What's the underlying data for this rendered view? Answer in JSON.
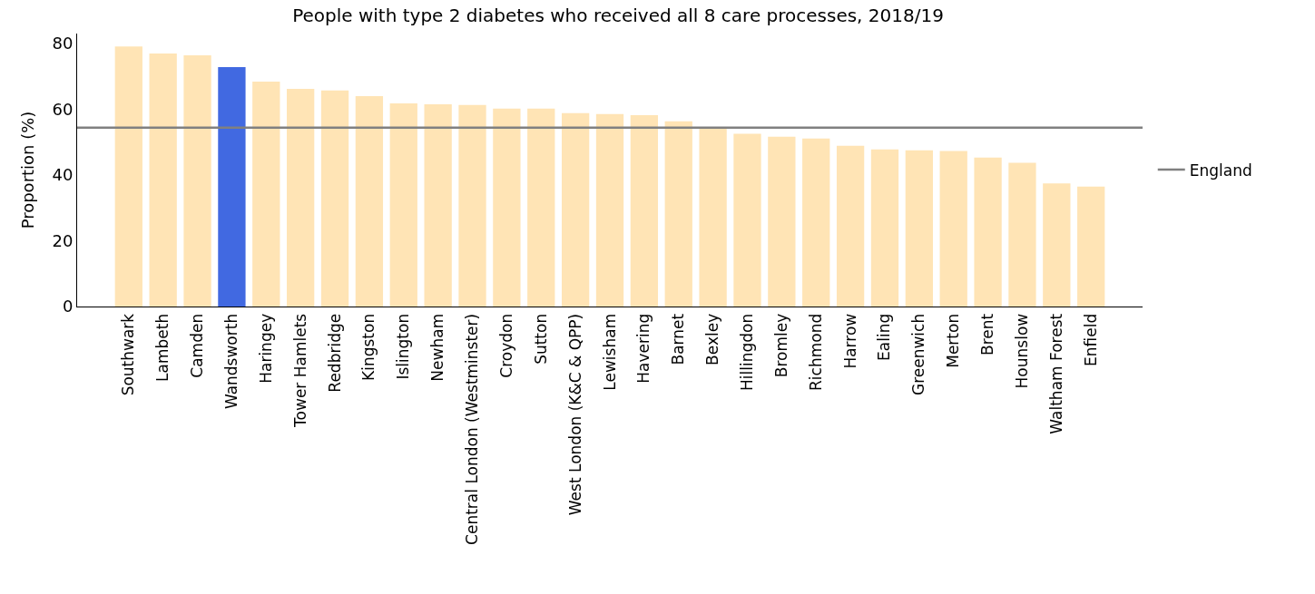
{
  "chart_data": {
    "type": "bar",
    "title": "People with type 2 diabetes who received all 8 care processes, 2018/19",
    "ylabel": "Proportion (%)",
    "categories": [
      "Southwark",
      "Lambeth",
      "Camden",
      "Wandsworth",
      "Haringey",
      "Tower Hamlets",
      "Redbridge",
      "Kingston",
      "Islington",
      "Newham",
      "Central London (Westminster)",
      "Croydon",
      "Sutton",
      "West London (K&C & QPP)",
      "Lewisham",
      "Havering",
      "Barnet",
      "Bexley",
      "Hillingdon",
      "Bromley",
      "Richmond",
      "Harrow",
      "Ealing",
      "Greenwich",
      "Merton",
      "Brent",
      "Hounslow",
      "Waltham Forest",
      "Enfield"
    ],
    "values": [
      79.1,
      76.9,
      76.4,
      72.8,
      68.4,
      66.2,
      65.7,
      64.0,
      61.8,
      61.5,
      61.3,
      60.2,
      60.2,
      58.8,
      58.5,
      58.2,
      56.3,
      54.4,
      52.5,
      51.6,
      51.1,
      48.9,
      47.8,
      47.5,
      47.3,
      45.3,
      43.7,
      37.4,
      36.5
    ],
    "colors": [
      "#ffe4b5",
      "#ffe4b5",
      "#ffe4b5",
      "#4169e1",
      "#ffe4b5",
      "#ffe4b5",
      "#ffe4b5",
      "#ffe4b5",
      "#ffe4b5",
      "#ffe4b5",
      "#ffe4b5",
      "#ffe4b5",
      "#ffe4b5",
      "#ffe4b5",
      "#ffe4b5",
      "#ffe4b5",
      "#ffe4b5",
      "#ffe4b5",
      "#ffe4b5",
      "#ffe4b5",
      "#ffe4b5",
      "#ffe4b5",
      "#ffe4b5",
      "#ffe4b5",
      "#ffe4b5",
      "#ffe4b5",
      "#ffe4b5",
      "#ffe4b5",
      "#ffe4b5"
    ],
    "ylim": [
      0,
      83
    ],
    "yticks": [
      0,
      20,
      40,
      60,
      80
    ],
    "ref_lines": [
      {
        "axis": "y",
        "value": 54.4,
        "label": "England",
        "color": "#808080",
        "line_style": "solid"
      }
    ],
    "legend": "right"
  }
}
